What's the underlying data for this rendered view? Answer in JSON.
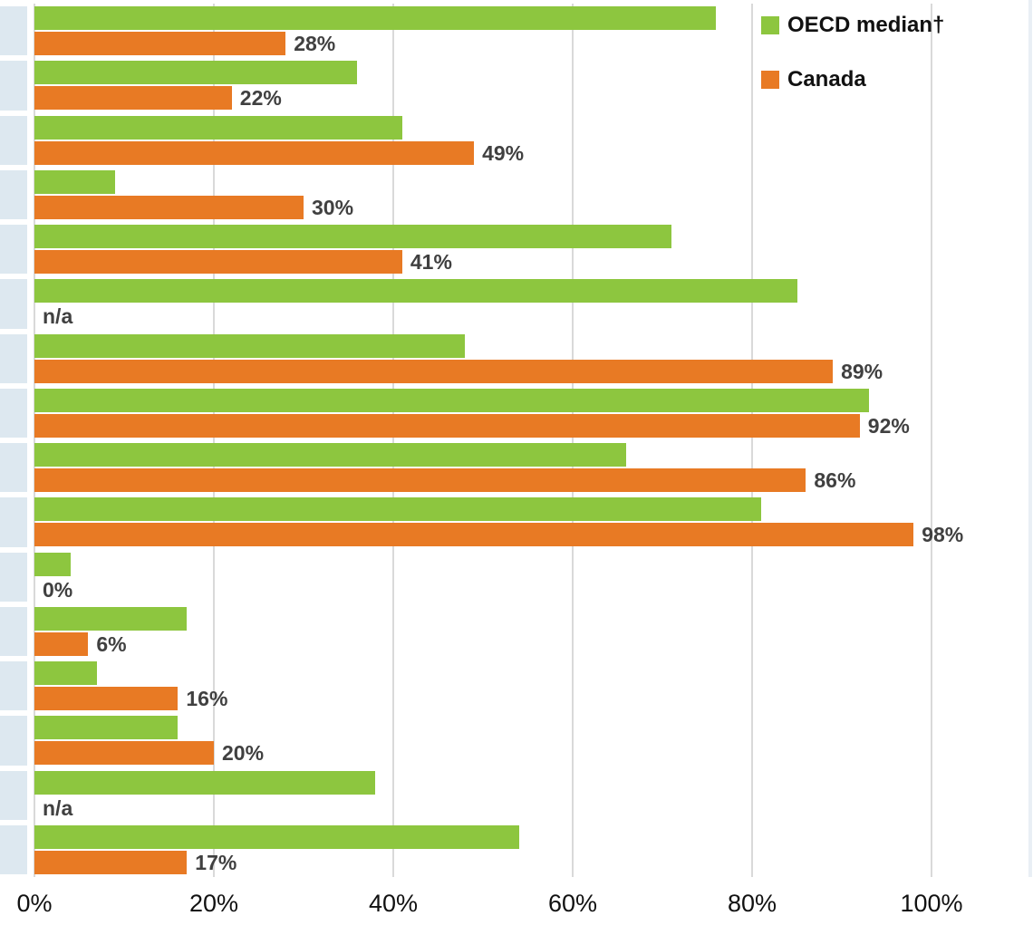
{
  "legend": {
    "items": [
      {
        "label": "OECD median†",
        "color": "#8dc63f"
      },
      {
        "label": "Canada",
        "color": "#e87a24"
      }
    ]
  },
  "chart_data": {
    "type": "bar",
    "orientation": "horizontal",
    "title": "",
    "xlabel": "",
    "ylabel": "",
    "xlim": [
      0,
      100
    ],
    "grid": "vertical",
    "legend_position": "top-right",
    "x_tick_labels": [
      "0%",
      "20%",
      "40%",
      "60%",
      "80%",
      "100%"
    ],
    "x_tick_values": [
      0,
      20,
      40,
      60,
      80,
      100
    ],
    "categories": [
      "",
      "",
      "",
      "",
      "",
      "",
      "",
      "",
      "",
      "",
      "",
      "",
      "",
      "",
      "",
      ""
    ],
    "series": [
      {
        "name": "OECD median†",
        "color": "#8dc63f",
        "values": [
          76,
          36,
          41,
          9,
          71,
          85,
          48,
          93,
          66,
          81,
          4,
          17,
          7,
          16,
          38,
          54
        ]
      },
      {
        "name": "Canada",
        "color": "#e87a24",
        "values": [
          28,
          22,
          49,
          30,
          41,
          null,
          89,
          92,
          86,
          98,
          0,
          6,
          16,
          20,
          null,
          17
        ],
        "labels": [
          "28%",
          "22%",
          "49%",
          "30%",
          "41%",
          "n/a",
          "89%",
          "92%",
          "86%",
          "98%",
          "0%",
          "6%",
          "16%",
          "20%",
          "n/a",
          "17%"
        ]
      }
    ]
  }
}
